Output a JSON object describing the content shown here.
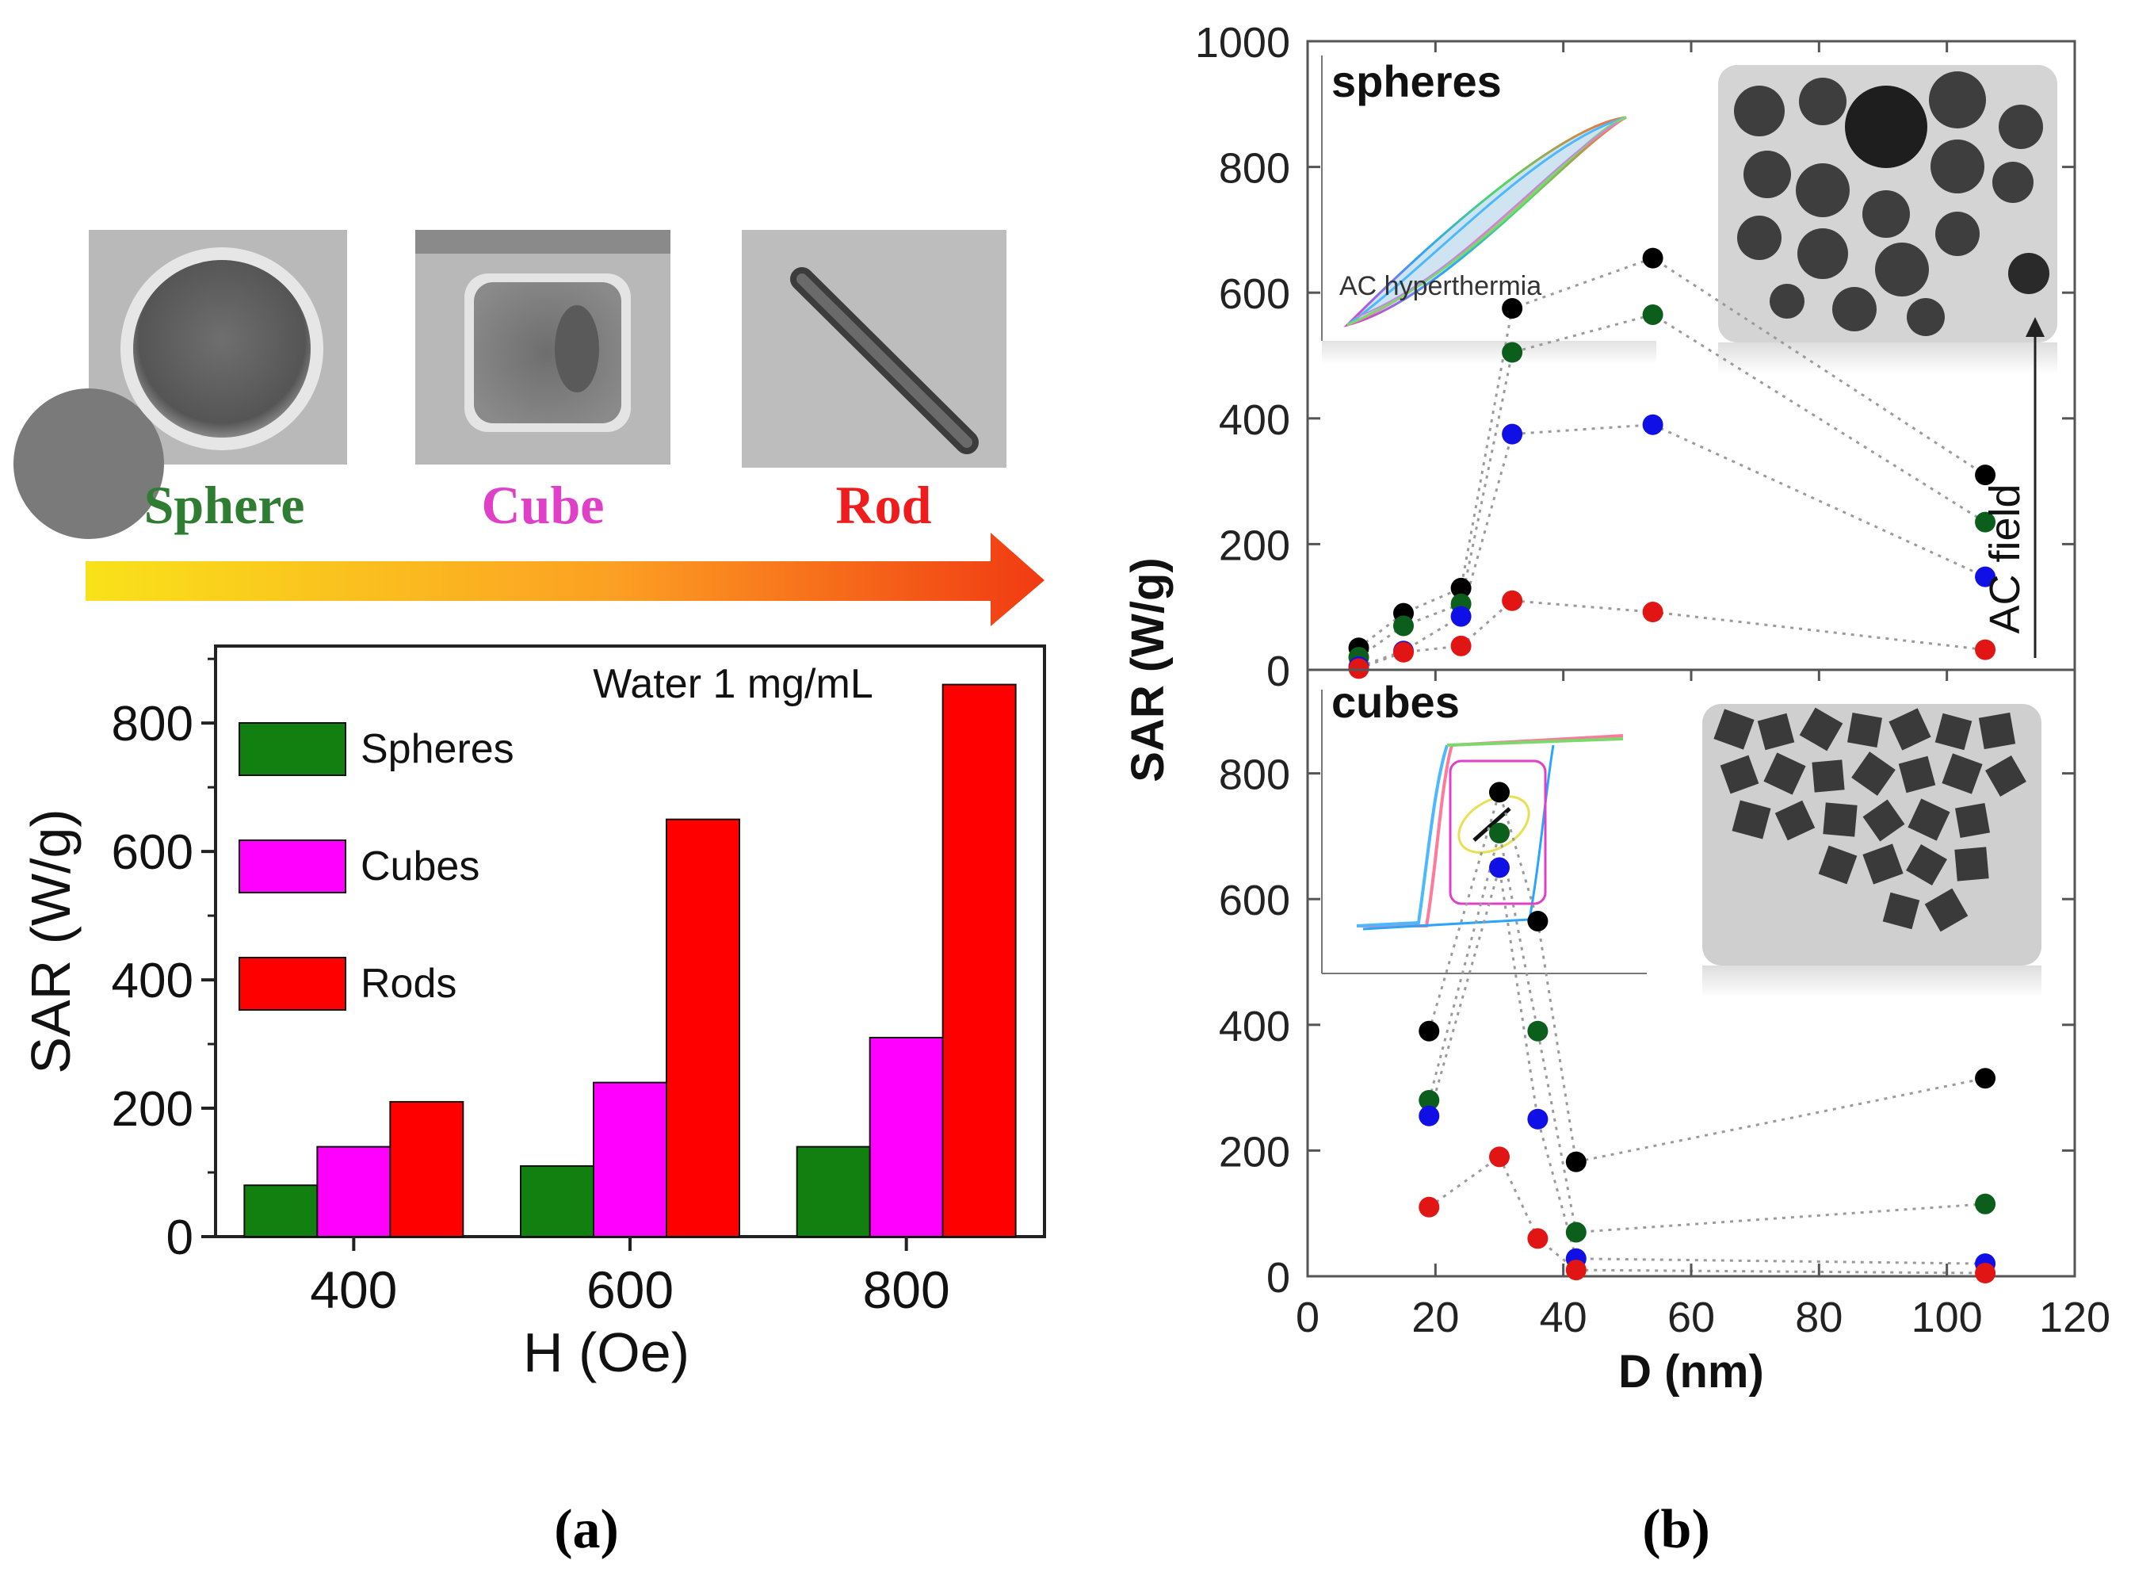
{
  "shape_labels": {
    "sphere": "Sphere",
    "cube": "Cube",
    "rod": "Rod"
  },
  "shape_colors": {
    "sphere": "#2e7d32",
    "cube": "#e040c8",
    "rod": "#ee1c1c"
  },
  "arrow_colors": [
    "#f9e21a",
    "#fca023",
    "#f13a12"
  ],
  "panel_labels": {
    "a": "(a)",
    "b": "(b)"
  },
  "chart_data": [
    {
      "id": "panel-a",
      "type": "bar",
      "annotation": "Water 1 mg/mL",
      "xlabel": "H (Oe)",
      "ylabel": "SAR (W/g)",
      "categories": [
        "400",
        "600",
        "800"
      ],
      "series": [
        {
          "name": "Spheres",
          "color": "#118011",
          "values": [
            80,
            110,
            140
          ]
        },
        {
          "name": "Cubes",
          "color": "#ff00ff",
          "values": [
            140,
            240,
            310
          ]
        },
        {
          "name": "Rods",
          "color": "#ff0000",
          "values": [
            210,
            650,
            860
          ]
        }
      ],
      "ylim": [
        0,
        920
      ],
      "yticks": [
        0,
        200,
        400,
        600,
        800
      ],
      "legend": "top-left"
    },
    {
      "id": "panel-b",
      "type": "scatter",
      "xlabel": "D (nm)",
      "ylabel": "SAR (W/g)",
      "xlim": [
        0,
        120
      ],
      "xticks": [
        0,
        20,
        40,
        60,
        80,
        100,
        120
      ],
      "field_label": "AC field",
      "subplots": [
        {
          "label": "spheres",
          "inset_label": "AC hyperthermia",
          "ylim": [
            0,
            1000
          ],
          "yticks": [
            0,
            200,
            400,
            600,
            800,
            1000
          ],
          "x": [
            8,
            15,
            24,
            32,
            54,
            106
          ],
          "series": [
            {
              "color": "#000000",
              "values": [
                35,
                90,
                130,
                575,
                655,
                310
              ]
            },
            {
              "color": "#0b5e1c",
              "values": [
                20,
                70,
                105,
                505,
                565,
                235
              ]
            },
            {
              "color": "#1010e6",
              "values": [
                5,
                30,
                85,
                375,
                390,
                148
              ]
            },
            {
              "color": "#e21515",
              "values": [
                2,
                28,
                38,
                110,
                92,
                32
              ]
            }
          ]
        },
        {
          "label": "cubes",
          "ylim": [
            0,
            1000
          ],
          "yticks": [
            0,
            200,
            400,
            600,
            800
          ],
          "x": [
            19,
            30,
            36,
            42,
            106
          ],
          "series": [
            {
              "color": "#000000",
              "values": [
                390,
                770,
                565,
                182,
                315
              ]
            },
            {
              "color": "#0b5e1c",
              "values": [
                280,
                705,
                390,
                70,
                115
              ]
            },
            {
              "color": "#1010e6",
              "values": [
                255,
                650,
                250,
                28,
                20
              ]
            },
            {
              "color": "#e21515",
              "values": [
                110,
                190,
                60,
                10,
                5
              ]
            }
          ]
        }
      ]
    }
  ]
}
